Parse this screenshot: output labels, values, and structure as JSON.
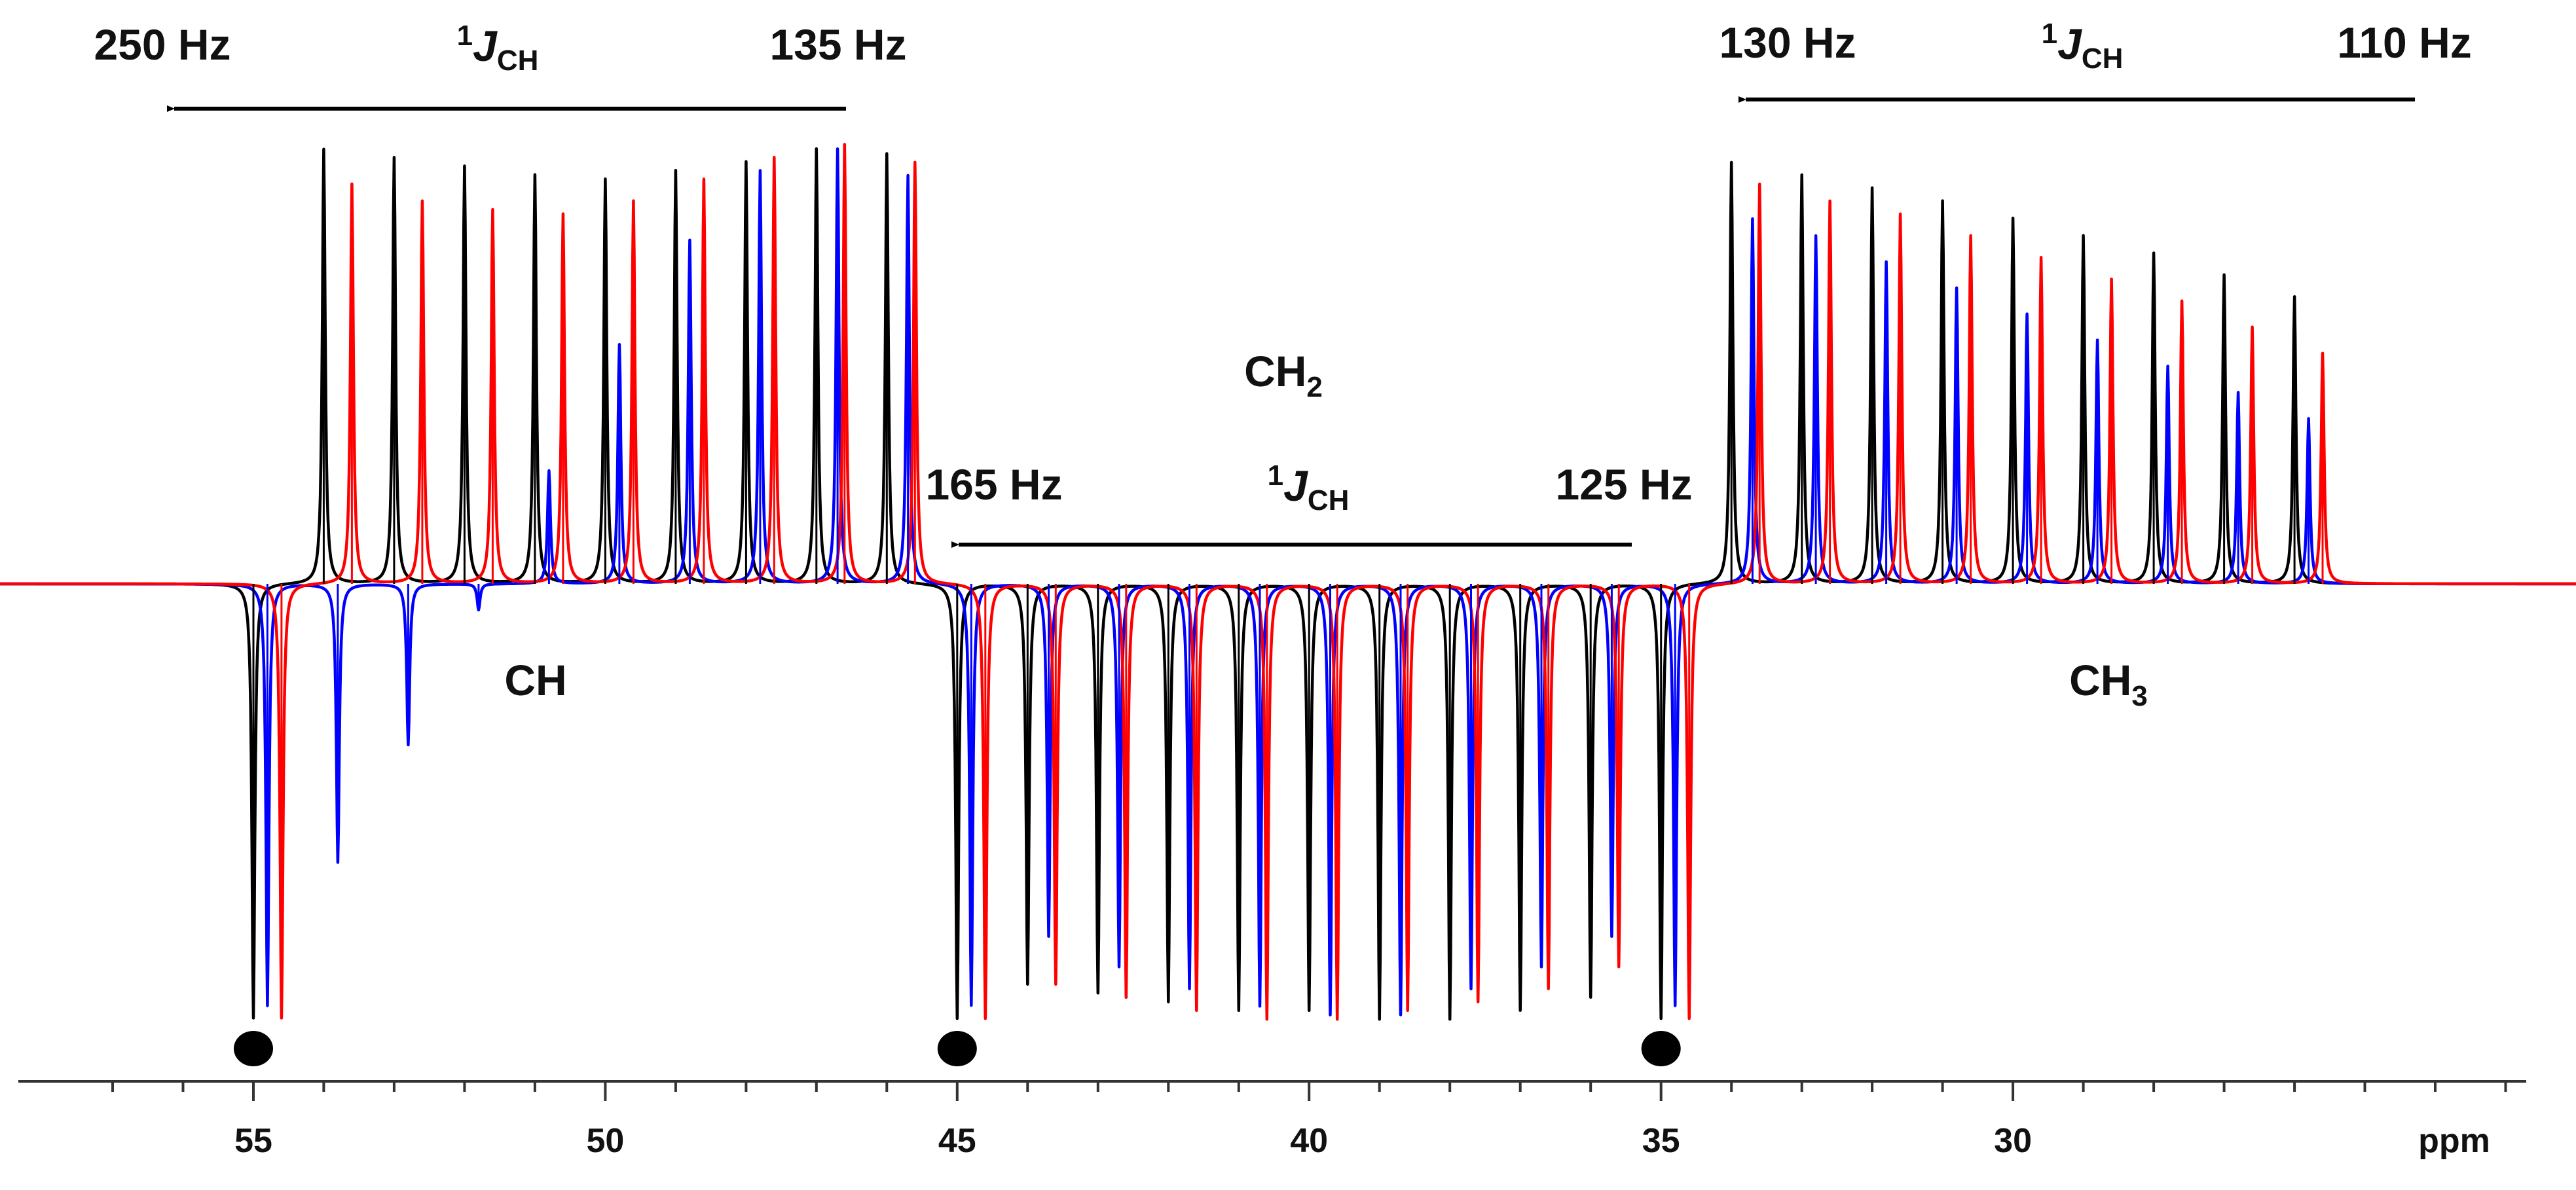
{
  "chart_data": {
    "type": "line",
    "title": "",
    "xlabel": "ppm",
    "ylabel": "",
    "xlim": [
      58.6,
      22.0
    ],
    "ylim": [
      -1.0,
      1.0
    ],
    "x_ticks": [
      {
        "value": 55,
        "label": "55"
      },
      {
        "value": 50,
        "label": "50"
      },
      {
        "value": 45,
        "label": "45"
      },
      {
        "value": 40,
        "label": "40"
      },
      {
        "value": 35,
        "label": "35"
      },
      {
        "value": 30,
        "label": "30"
      }
    ],
    "minor_tick_step": 1,
    "series": [
      {
        "name": "black",
        "color": "#000000",
        "peaks": [
          {
            "ppm": 54.0,
            "h": 1.0
          },
          {
            "ppm": 53.0,
            "h": 0.98
          },
          {
            "ppm": 52.0,
            "h": 0.96
          },
          {
            "ppm": 51.0,
            "h": 0.94
          },
          {
            "ppm": 50.0,
            "h": 0.93
          },
          {
            "ppm": 49.0,
            "h": 0.95
          },
          {
            "ppm": 48.0,
            "h": 0.97
          },
          {
            "ppm": 47.0,
            "h": 1.0
          },
          {
            "ppm": 46.0,
            "h": 0.99
          },
          {
            "ppm": 55.0,
            "h": -1.0
          },
          {
            "ppm": 45.0,
            "h": -1.0
          },
          {
            "ppm": 44.0,
            "h": -0.92
          },
          {
            "ppm": 43.0,
            "h": -0.94
          },
          {
            "ppm": 42.0,
            "h": -0.96
          },
          {
            "ppm": 41.0,
            "h": -0.98
          },
          {
            "ppm": 40.0,
            "h": -0.98
          },
          {
            "ppm": 39.0,
            "h": -1.0
          },
          {
            "ppm": 38.0,
            "h": -1.0
          },
          {
            "ppm": 37.0,
            "h": -0.98
          },
          {
            "ppm": 36.0,
            "h": -0.95
          },
          {
            "ppm": 35.0,
            "h": -1.0
          },
          {
            "ppm": 34.0,
            "h": 0.97
          },
          {
            "ppm": 33.0,
            "h": 0.94
          },
          {
            "ppm": 32.0,
            "h": 0.91
          },
          {
            "ppm": 31.0,
            "h": 0.88
          },
          {
            "ppm": 30.0,
            "h": 0.84
          },
          {
            "ppm": 29.0,
            "h": 0.8
          },
          {
            "ppm": 28.0,
            "h": 0.76
          },
          {
            "ppm": 27.0,
            "h": 0.71
          },
          {
            "ppm": 26.0,
            "h": 0.66
          }
        ]
      },
      {
        "name": "blue",
        "color": "#0000ff",
        "peaks": [
          {
            "ppm": 54.8,
            "h": -0.97
          },
          {
            "ppm": 53.8,
            "h": -0.64
          },
          {
            "ppm": 52.8,
            "h": -0.37
          },
          {
            "ppm": 51.8,
            "h": -0.06
          },
          {
            "ppm": 50.8,
            "h": 0.26
          },
          {
            "ppm": 49.8,
            "h": 0.55
          },
          {
            "ppm": 48.8,
            "h": 0.79
          },
          {
            "ppm": 47.8,
            "h": 0.95
          },
          {
            "ppm": 46.7,
            "h": 1.0
          },
          {
            "ppm": 45.7,
            "h": 0.94
          },
          {
            "ppm": 44.8,
            "h": -0.97
          },
          {
            "ppm": 43.7,
            "h": -0.81
          },
          {
            "ppm": 42.7,
            "h": -0.88
          },
          {
            "ppm": 41.7,
            "h": -0.93
          },
          {
            "ppm": 40.7,
            "h": -0.97
          },
          {
            "ppm": 39.7,
            "h": -0.99
          },
          {
            "ppm": 38.7,
            "h": -0.99
          },
          {
            "ppm": 37.7,
            "h": -0.93
          },
          {
            "ppm": 36.7,
            "h": -0.88
          },
          {
            "ppm": 35.7,
            "h": -0.81
          },
          {
            "ppm": 34.8,
            "h": -0.97
          },
          {
            "ppm": 33.7,
            "h": 0.84
          },
          {
            "ppm": 32.8,
            "h": 0.8
          },
          {
            "ppm": 31.8,
            "h": 0.74
          },
          {
            "ppm": 30.8,
            "h": 0.68
          },
          {
            "ppm": 29.8,
            "h": 0.62
          },
          {
            "ppm": 28.8,
            "h": 0.56
          },
          {
            "ppm": 27.8,
            "h": 0.5
          },
          {
            "ppm": 26.8,
            "h": 0.44
          },
          {
            "ppm": 25.8,
            "h": 0.38
          }
        ]
      },
      {
        "name": "red",
        "color": "#ff0000",
        "peaks": [
          {
            "ppm": 53.6,
            "h": 0.92
          },
          {
            "ppm": 52.6,
            "h": 0.88
          },
          {
            "ppm": 51.6,
            "h": 0.86
          },
          {
            "ppm": 50.6,
            "h": 0.85
          },
          {
            "ppm": 49.6,
            "h": 0.88
          },
          {
            "ppm": 48.6,
            "h": 0.93
          },
          {
            "ppm": 47.6,
            "h": 0.98
          },
          {
            "ppm": 46.6,
            "h": 1.01
          },
          {
            "ppm": 45.6,
            "h": 0.97
          },
          {
            "ppm": 54.6,
            "h": -1.0
          },
          {
            "ppm": 44.6,
            "h": -1.0
          },
          {
            "ppm": 43.6,
            "h": -0.92
          },
          {
            "ppm": 42.6,
            "h": -0.95
          },
          {
            "ppm": 41.6,
            "h": -0.98
          },
          {
            "ppm": 40.6,
            "h": -1.0
          },
          {
            "ppm": 39.6,
            "h": -1.0
          },
          {
            "ppm": 38.6,
            "h": -0.98
          },
          {
            "ppm": 37.6,
            "h": -0.96
          },
          {
            "ppm": 36.6,
            "h": -0.93
          },
          {
            "ppm": 35.6,
            "h": -0.88
          },
          {
            "ppm": 34.6,
            "h": -1.0
          },
          {
            "ppm": 33.6,
            "h": 0.92
          },
          {
            "ppm": 32.6,
            "h": 0.88
          },
          {
            "ppm": 31.6,
            "h": 0.85
          },
          {
            "ppm": 30.6,
            "h": 0.8
          },
          {
            "ppm": 29.6,
            "h": 0.75
          },
          {
            "ppm": 28.6,
            "h": 0.7
          },
          {
            "ppm": 27.6,
            "h": 0.65
          },
          {
            "ppm": 26.6,
            "h": 0.59
          },
          {
            "ppm": 25.6,
            "h": 0.53
          }
        ]
      }
    ],
    "markers": [
      {
        "ppm": 55.0,
        "label": "●"
      },
      {
        "ppm": 45.0,
        "label": "●"
      },
      {
        "ppm": 35.0,
        "label": "●"
      }
    ],
    "annotations": {
      "ch": {
        "group": "CH",
        "start_hz": "250 Hz",
        "end_hz": "135 Hz",
        "j_sup": "1",
        "j_main": "J",
        "j_sub": "CH"
      },
      "ch2": {
        "group_main": "CH",
        "group_sub": "2",
        "start_hz": "165 Hz",
        "end_hz": "125 Hz",
        "j_sup": "1",
        "j_main": "J",
        "j_sub": "CH"
      },
      "ch3": {
        "group_main": "CH",
        "group_sub": "3",
        "start_hz": "130 Hz",
        "end_hz": "110 Hz",
        "j_sup": "1",
        "j_main": "J",
        "j_sub": "CH"
      }
    },
    "grid": false,
    "legend": "none"
  }
}
